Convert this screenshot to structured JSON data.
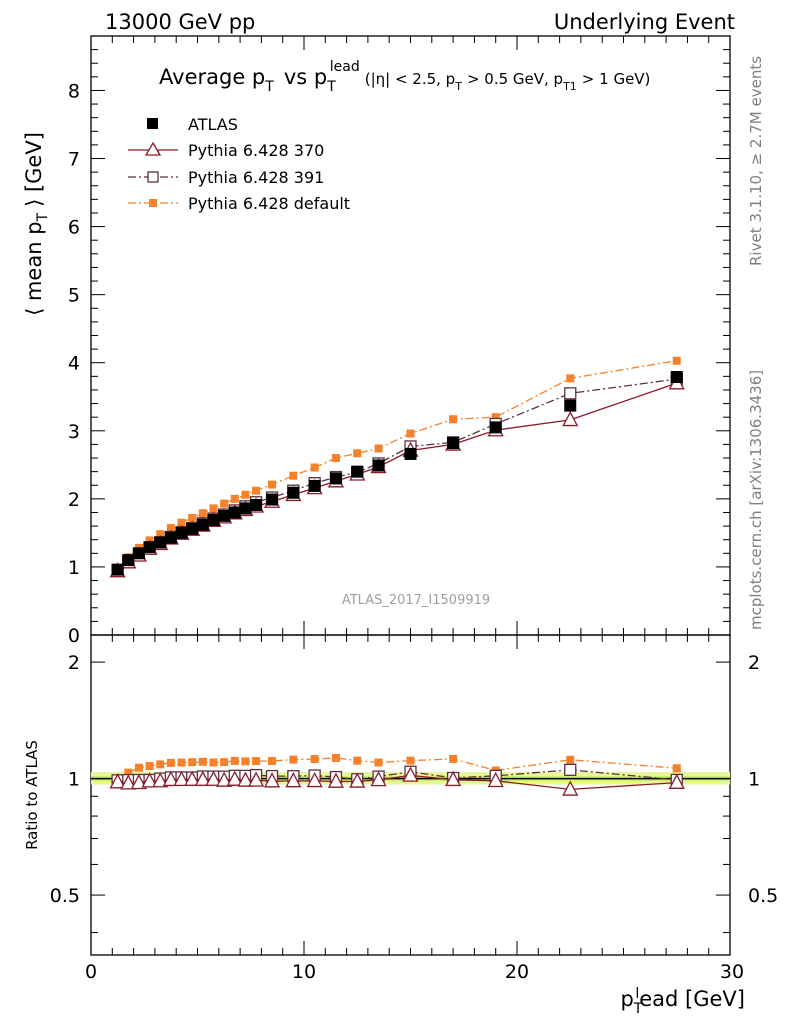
{
  "header": {
    "left": "13000 GeV pp",
    "right": "Underlying Event"
  },
  "plot_title": {
    "main": "Average p",
    "main_sub": "T",
    "vs": "vs p",
    "vs_sub": "T",
    "vs_sup": "lead",
    "cuts_a": "(|η| < 2.5, p",
    "cuts_a_sub": "T",
    "cuts_b": "> 0.5 GeV, p",
    "cuts_b_sub": "T1",
    "cuts_c": "> 1 GeV)"
  },
  "side_labels": {
    "rivet": "Rivet 3.1.10, ≥ 2.7M events",
    "mcplots": "mcplots.cern.ch [arXiv:1306.3436]"
  },
  "watermark": "ATLAS_2017_I1509919",
  "axes": {
    "ylabel_main": "⟨ mean p",
    "ylabel_main_sub": "T",
    "ylabel_main_end": "⟩ [GeV]",
    "ylabel_ratio": "Ratio to ATLAS",
    "xlabel": "p",
    "xlabel_sub": "T",
    "xlabel_sup": "l",
    "xlabel_end": "ead [GeV]",
    "x_ticks": [
      "0",
      "10",
      "20",
      "30"
    ],
    "y_ticks_main": [
      "0",
      "1",
      "2",
      "3",
      "4",
      "5",
      "6",
      "7",
      "8"
    ],
    "y_ticks_ratio": [
      "0.5",
      "1",
      "2"
    ]
  },
  "legend": [
    {
      "label": "ATLAS",
      "color": "#000000",
      "marker": "filled-square"
    },
    {
      "label": "Pythia 6.428 370",
      "color": "#8b1a2b",
      "marker": "open-triangle"
    },
    {
      "label": "Pythia 6.428 391",
      "color": "#5c3040",
      "marker": "open-square"
    },
    {
      "label": "Pythia 6.428 default",
      "color": "#f5822a",
      "marker": "filled-square-small"
    }
  ],
  "chart_data": {
    "type": "line",
    "xlim": [
      0,
      30
    ],
    "ylim": [
      0,
      8.8
    ],
    "ratio_ylim": [
      0.35,
      2.35
    ],
    "ratio_scale": "log",
    "x": [
      1.25,
      1.75,
      2.25,
      2.75,
      3.25,
      3.75,
      4.25,
      4.75,
      5.25,
      5.75,
      6.25,
      6.75,
      7.25,
      7.75,
      8.5,
      9.5,
      10.5,
      11.5,
      12.5,
      13.5,
      15,
      17,
      19,
      22.5,
      27.5
    ],
    "series": [
      {
        "name": "ATLAS",
        "color": "#000000",
        "values": [
          0.96,
          1.1,
          1.2,
          1.29,
          1.36,
          1.43,
          1.5,
          1.56,
          1.62,
          1.69,
          1.75,
          1.8,
          1.86,
          1.91,
          1.99,
          2.09,
          2.19,
          2.3,
          2.4,
          2.49,
          2.66,
          2.82,
          3.05,
          3.37,
          3.79
        ]
      },
      {
        "name": "Pythia 6.428 370",
        "color": "#8b1a2b",
        "values": [
          0.94,
          1.07,
          1.17,
          1.27,
          1.34,
          1.42,
          1.49,
          1.55,
          1.61,
          1.68,
          1.73,
          1.79,
          1.84,
          1.89,
          1.96,
          2.06,
          2.16,
          2.26,
          2.36,
          2.47,
          2.71,
          2.8,
          3.01,
          3.16,
          3.7
        ]
      },
      {
        "name": "Pythia 6.428 391",
        "color": "#5c3040",
        "values": [
          0.95,
          1.09,
          1.19,
          1.28,
          1.36,
          1.44,
          1.51,
          1.57,
          1.64,
          1.71,
          1.77,
          1.83,
          1.89,
          1.95,
          2.02,
          2.12,
          2.23,
          2.32,
          2.39,
          2.52,
          2.77,
          2.83,
          3.1,
          3.55,
          3.76
        ]
      },
      {
        "name": "Pythia 6.428 default",
        "color": "#f5822a",
        "values": [
          0.96,
          1.14,
          1.28,
          1.39,
          1.48,
          1.57,
          1.65,
          1.72,
          1.79,
          1.86,
          1.93,
          2.0,
          2.06,
          2.12,
          2.21,
          2.34,
          2.46,
          2.6,
          2.67,
          2.74,
          2.96,
          3.17,
          3.2,
          3.77,
          4.03
        ]
      }
    ]
  }
}
